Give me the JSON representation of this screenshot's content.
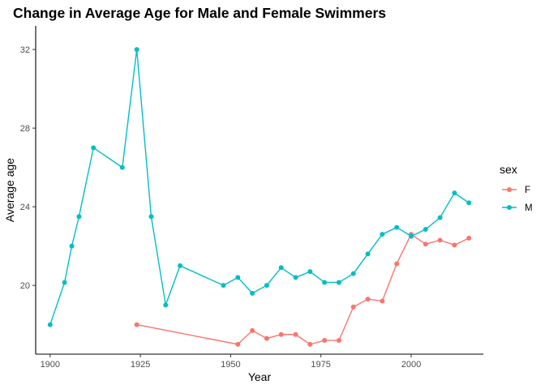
{
  "chart_data": {
    "type": "line",
    "title": "Change in Average Age for Male and Female Swimmers",
    "xlabel": "Year",
    "ylabel": "Average age",
    "xlim": [
      1896,
      2020
    ],
    "ylim": [
      16.5,
      33.2
    ],
    "x_ticks": [
      1900,
      1925,
      1950,
      1975,
      2000
    ],
    "y_ticks": [
      20,
      24,
      28,
      32
    ],
    "grid": false,
    "legend": {
      "title": "sex",
      "placement": "right"
    },
    "series": [
      {
        "name": "F",
        "color": "#F8766D",
        "points": [
          [
            1924,
            18.0
          ],
          [
            1952,
            17.0
          ],
          [
            1956,
            17.7
          ],
          [
            1960,
            17.3
          ],
          [
            1964,
            17.5
          ],
          [
            1968,
            17.5
          ],
          [
            1972,
            17.0
          ],
          [
            1976,
            17.2
          ],
          [
            1980,
            17.2
          ],
          [
            1984,
            18.9
          ],
          [
            1988,
            19.3
          ],
          [
            1992,
            19.2
          ],
          [
            1996,
            21.1
          ],
          [
            2000,
            22.6
          ],
          [
            2004,
            22.1
          ],
          [
            2008,
            22.3
          ],
          [
            2012,
            22.05
          ],
          [
            2016,
            22.4
          ]
        ]
      },
      {
        "name": "M",
        "color": "#00BFC4",
        "points": [
          [
            1900,
            18.0
          ],
          [
            1904,
            20.15
          ],
          [
            1906,
            22.0
          ],
          [
            1908,
            23.5
          ],
          [
            1912,
            27.0
          ],
          [
            1920,
            26.0
          ],
          [
            1924,
            32.0
          ],
          [
            1928,
            23.5
          ],
          [
            1932,
            19.0
          ],
          [
            1936,
            21.0
          ],
          [
            1948,
            20.0
          ],
          [
            1952,
            20.4
          ],
          [
            1956,
            19.6
          ],
          [
            1960,
            20.0
          ],
          [
            1964,
            20.9
          ],
          [
            1968,
            20.4
          ],
          [
            1972,
            20.7
          ],
          [
            1976,
            20.15
          ],
          [
            1980,
            20.15
          ],
          [
            1984,
            20.6
          ],
          [
            1988,
            21.6
          ],
          [
            1992,
            22.6
          ],
          [
            1996,
            22.95
          ],
          [
            2000,
            22.5
          ],
          [
            2004,
            22.85
          ],
          [
            2008,
            23.45
          ],
          [
            2012,
            24.7
          ],
          [
            2016,
            24.2
          ]
        ]
      }
    ]
  }
}
